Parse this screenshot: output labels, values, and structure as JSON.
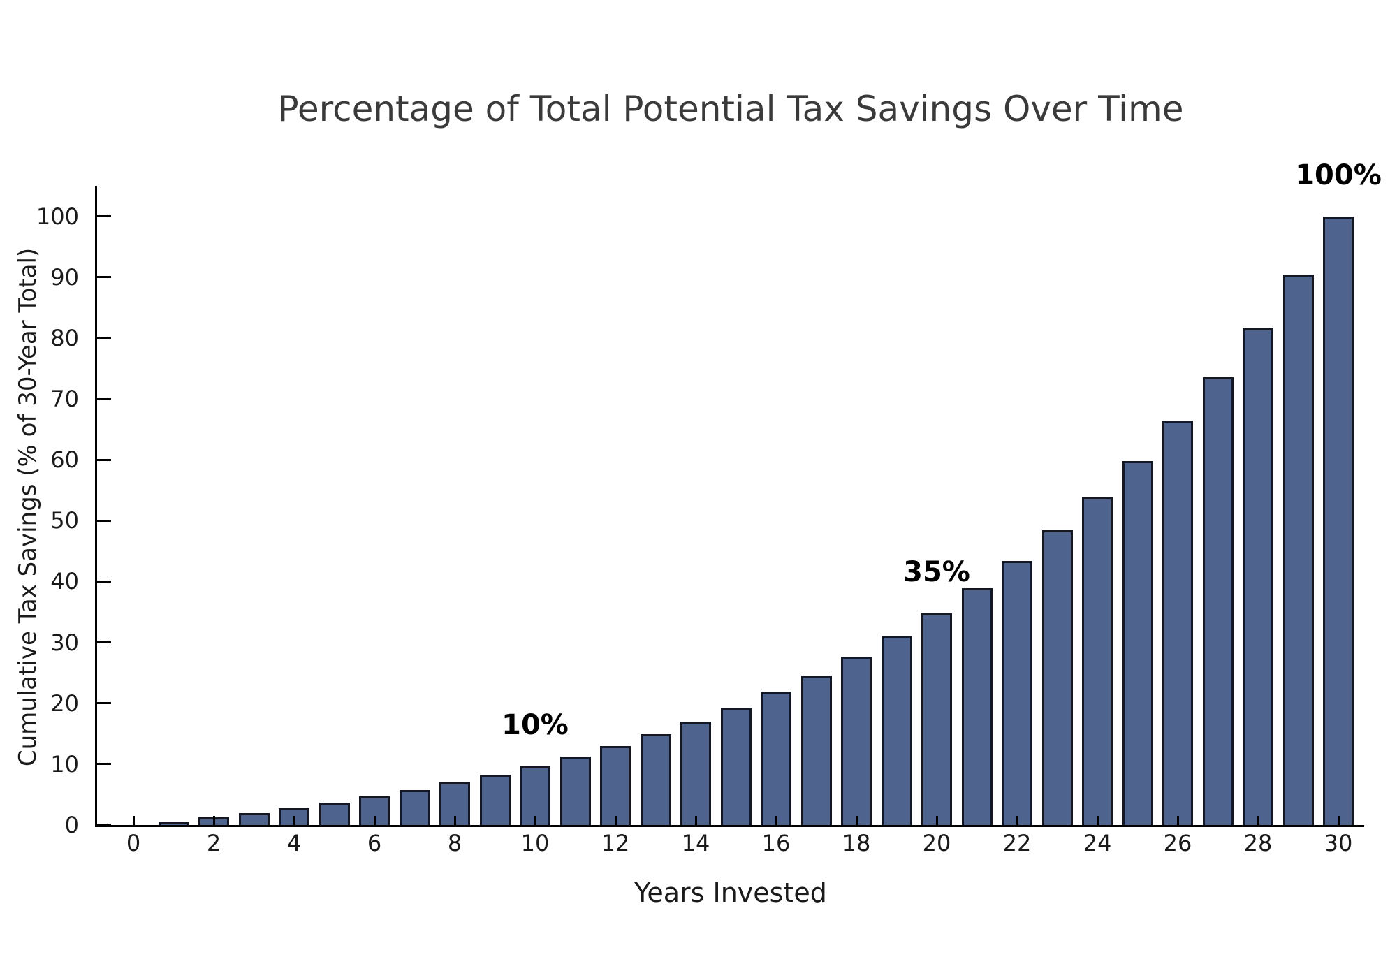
{
  "chart_data": {
    "type": "bar",
    "title": "Percentage of Total Potential Tax Savings Over Time",
    "xlabel": "Years Invested",
    "ylabel": "Cumulative Tax Savings (% of 30-Year Total)",
    "x": [
      0,
      1,
      2,
      3,
      4,
      5,
      6,
      7,
      8,
      9,
      10,
      11,
      12,
      13,
      14,
      15,
      16,
      17,
      18,
      19,
      20,
      21,
      22,
      23,
      24,
      25,
      26,
      27,
      28,
      29,
      30
    ],
    "values": [
      0,
      0.6,
      1.3,
      2.0,
      2.8,
      3.7,
      4.7,
      5.8,
      7.0,
      8.3,
      9.7,
      11.3,
      13.0,
      14.9,
      17.0,
      19.3,
      21.9,
      24.6,
      27.7,
      31.1,
      34.8,
      38.9,
      43.4,
      48.4,
      53.8,
      59.8,
      66.4,
      73.6,
      81.6,
      90.4,
      100.0
    ],
    "xticks": [
      0,
      2,
      4,
      6,
      8,
      10,
      12,
      14,
      16,
      18,
      20,
      22,
      24,
      26,
      28,
      30
    ],
    "yticks": [
      0,
      10,
      20,
      30,
      40,
      50,
      60,
      70,
      80,
      90,
      100
    ],
    "xlim": [
      -1,
      31
    ],
    "ylim": [
      0,
      105
    ],
    "grid": false,
    "legend": null,
    "annotations": [
      {
        "x": 10,
        "label": "10%"
      },
      {
        "x": 20,
        "label": "35%"
      },
      {
        "x": 30,
        "label": "100%"
      }
    ],
    "colors": {
      "bar_fill": "#4E648E",
      "bar_edge": "#141824",
      "axis": "#000000",
      "title_text": "#3A3A3A",
      "tick_text": "#1A1A1A",
      "annotation_text": "#000000",
      "background": "#FFFFFF"
    }
  }
}
